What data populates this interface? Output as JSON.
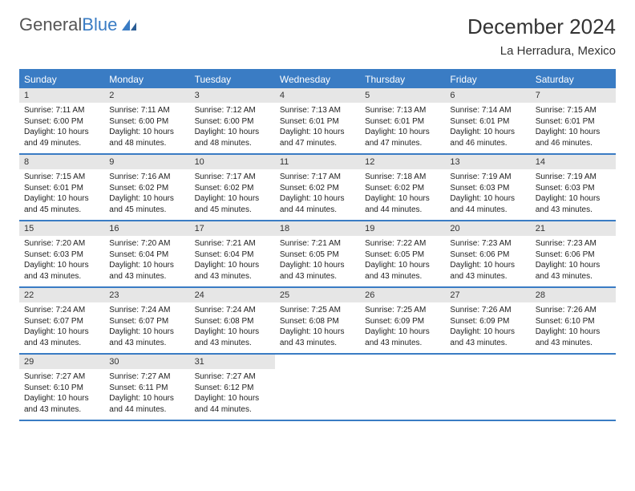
{
  "logo": {
    "text1": "General",
    "text2": "Blue"
  },
  "title": "December 2024",
  "location": "La Herradura, Mexico",
  "colors": {
    "accent": "#3a7cc4",
    "daynum_bg": "#e6e6e6",
    "text": "#222222",
    "header_text": "#ffffff",
    "background": "#ffffff"
  },
  "dow": [
    "Sunday",
    "Monday",
    "Tuesday",
    "Wednesday",
    "Thursday",
    "Friday",
    "Saturday"
  ],
  "weeks": [
    [
      {
        "n": "1",
        "sr": "Sunrise: 7:11 AM",
        "ss": "Sunset: 6:00 PM",
        "d1": "Daylight: 10 hours",
        "d2": "and 49 minutes."
      },
      {
        "n": "2",
        "sr": "Sunrise: 7:11 AM",
        "ss": "Sunset: 6:00 PM",
        "d1": "Daylight: 10 hours",
        "d2": "and 48 minutes."
      },
      {
        "n": "3",
        "sr": "Sunrise: 7:12 AM",
        "ss": "Sunset: 6:00 PM",
        "d1": "Daylight: 10 hours",
        "d2": "and 48 minutes."
      },
      {
        "n": "4",
        "sr": "Sunrise: 7:13 AM",
        "ss": "Sunset: 6:01 PM",
        "d1": "Daylight: 10 hours",
        "d2": "and 47 minutes."
      },
      {
        "n": "5",
        "sr": "Sunrise: 7:13 AM",
        "ss": "Sunset: 6:01 PM",
        "d1": "Daylight: 10 hours",
        "d2": "and 47 minutes."
      },
      {
        "n": "6",
        "sr": "Sunrise: 7:14 AM",
        "ss": "Sunset: 6:01 PM",
        "d1": "Daylight: 10 hours",
        "d2": "and 46 minutes."
      },
      {
        "n": "7",
        "sr": "Sunrise: 7:15 AM",
        "ss": "Sunset: 6:01 PM",
        "d1": "Daylight: 10 hours",
        "d2": "and 46 minutes."
      }
    ],
    [
      {
        "n": "8",
        "sr": "Sunrise: 7:15 AM",
        "ss": "Sunset: 6:01 PM",
        "d1": "Daylight: 10 hours",
        "d2": "and 45 minutes."
      },
      {
        "n": "9",
        "sr": "Sunrise: 7:16 AM",
        "ss": "Sunset: 6:02 PM",
        "d1": "Daylight: 10 hours",
        "d2": "and 45 minutes."
      },
      {
        "n": "10",
        "sr": "Sunrise: 7:17 AM",
        "ss": "Sunset: 6:02 PM",
        "d1": "Daylight: 10 hours",
        "d2": "and 45 minutes."
      },
      {
        "n": "11",
        "sr": "Sunrise: 7:17 AM",
        "ss": "Sunset: 6:02 PM",
        "d1": "Daylight: 10 hours",
        "d2": "and 44 minutes."
      },
      {
        "n": "12",
        "sr": "Sunrise: 7:18 AM",
        "ss": "Sunset: 6:02 PM",
        "d1": "Daylight: 10 hours",
        "d2": "and 44 minutes."
      },
      {
        "n": "13",
        "sr": "Sunrise: 7:19 AM",
        "ss": "Sunset: 6:03 PM",
        "d1": "Daylight: 10 hours",
        "d2": "and 44 minutes."
      },
      {
        "n": "14",
        "sr": "Sunrise: 7:19 AM",
        "ss": "Sunset: 6:03 PM",
        "d1": "Daylight: 10 hours",
        "d2": "and 43 minutes."
      }
    ],
    [
      {
        "n": "15",
        "sr": "Sunrise: 7:20 AM",
        "ss": "Sunset: 6:03 PM",
        "d1": "Daylight: 10 hours",
        "d2": "and 43 minutes."
      },
      {
        "n": "16",
        "sr": "Sunrise: 7:20 AM",
        "ss": "Sunset: 6:04 PM",
        "d1": "Daylight: 10 hours",
        "d2": "and 43 minutes."
      },
      {
        "n": "17",
        "sr": "Sunrise: 7:21 AM",
        "ss": "Sunset: 6:04 PM",
        "d1": "Daylight: 10 hours",
        "d2": "and 43 minutes."
      },
      {
        "n": "18",
        "sr": "Sunrise: 7:21 AM",
        "ss": "Sunset: 6:05 PM",
        "d1": "Daylight: 10 hours",
        "d2": "and 43 minutes."
      },
      {
        "n": "19",
        "sr": "Sunrise: 7:22 AM",
        "ss": "Sunset: 6:05 PM",
        "d1": "Daylight: 10 hours",
        "d2": "and 43 minutes."
      },
      {
        "n": "20",
        "sr": "Sunrise: 7:23 AM",
        "ss": "Sunset: 6:06 PM",
        "d1": "Daylight: 10 hours",
        "d2": "and 43 minutes."
      },
      {
        "n": "21",
        "sr": "Sunrise: 7:23 AM",
        "ss": "Sunset: 6:06 PM",
        "d1": "Daylight: 10 hours",
        "d2": "and 43 minutes."
      }
    ],
    [
      {
        "n": "22",
        "sr": "Sunrise: 7:24 AM",
        "ss": "Sunset: 6:07 PM",
        "d1": "Daylight: 10 hours",
        "d2": "and 43 minutes."
      },
      {
        "n": "23",
        "sr": "Sunrise: 7:24 AM",
        "ss": "Sunset: 6:07 PM",
        "d1": "Daylight: 10 hours",
        "d2": "and 43 minutes."
      },
      {
        "n": "24",
        "sr": "Sunrise: 7:24 AM",
        "ss": "Sunset: 6:08 PM",
        "d1": "Daylight: 10 hours",
        "d2": "and 43 minutes."
      },
      {
        "n": "25",
        "sr": "Sunrise: 7:25 AM",
        "ss": "Sunset: 6:08 PM",
        "d1": "Daylight: 10 hours",
        "d2": "and 43 minutes."
      },
      {
        "n": "26",
        "sr": "Sunrise: 7:25 AM",
        "ss": "Sunset: 6:09 PM",
        "d1": "Daylight: 10 hours",
        "d2": "and 43 minutes."
      },
      {
        "n": "27",
        "sr": "Sunrise: 7:26 AM",
        "ss": "Sunset: 6:09 PM",
        "d1": "Daylight: 10 hours",
        "d2": "and 43 minutes."
      },
      {
        "n": "28",
        "sr": "Sunrise: 7:26 AM",
        "ss": "Sunset: 6:10 PM",
        "d1": "Daylight: 10 hours",
        "d2": "and 43 minutes."
      }
    ],
    [
      {
        "n": "29",
        "sr": "Sunrise: 7:27 AM",
        "ss": "Sunset: 6:10 PM",
        "d1": "Daylight: 10 hours",
        "d2": "and 43 minutes."
      },
      {
        "n": "30",
        "sr": "Sunrise: 7:27 AM",
        "ss": "Sunset: 6:11 PM",
        "d1": "Daylight: 10 hours",
        "d2": "and 44 minutes."
      },
      {
        "n": "31",
        "sr": "Sunrise: 7:27 AM",
        "ss": "Sunset: 6:12 PM",
        "d1": "Daylight: 10 hours",
        "d2": "and 44 minutes."
      },
      null,
      null,
      null,
      null
    ]
  ]
}
